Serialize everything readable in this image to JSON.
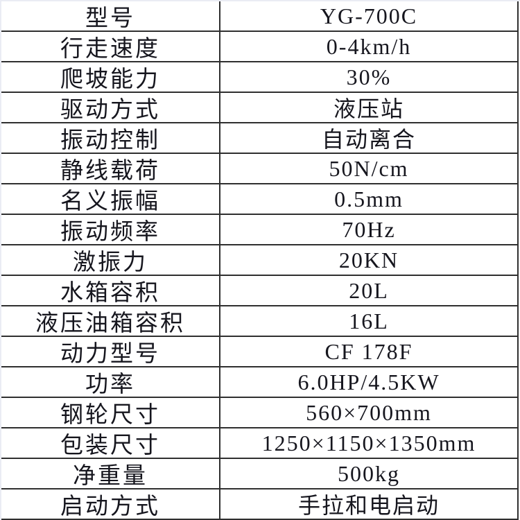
{
  "page": {
    "bg": "#ffffff",
    "edge_tint": "#eaecf4",
    "border_color": "#2f2f2f",
    "text_color": "#16161e"
  },
  "spec_table": {
    "rows": [
      {
        "label": "型号",
        "value": "YG-700C"
      },
      {
        "label": "行走速度",
        "value": "0-4km/h"
      },
      {
        "label": "爬坡能力",
        "value": "30%"
      },
      {
        "label": "驱动方式",
        "value": "液压站"
      },
      {
        "label": "振动控制",
        "value": "自动离合"
      },
      {
        "label": "静线载荷",
        "value": "50N/cm"
      },
      {
        "label": "名义振幅",
        "value": "0.5mm"
      },
      {
        "label": "振动频率",
        "value": "70Hz"
      },
      {
        "label": "激振力",
        "value": "20KN"
      },
      {
        "label": "水箱容积",
        "value": "20L"
      },
      {
        "label": "液压油箱容积",
        "value": "16L"
      },
      {
        "label": "动力型号",
        "value": "CF 178F"
      },
      {
        "label": "功率",
        "value": "6.0HP/4.5KW"
      },
      {
        "label": "钢轮尺寸",
        "value": "560×700mm"
      },
      {
        "label": "包装尺寸",
        "value": "1250×1150×1350mm"
      },
      {
        "label": "净重量",
        "value": "500kg"
      },
      {
        "label": "启动方式",
        "value": "手拉和电启动"
      }
    ]
  }
}
